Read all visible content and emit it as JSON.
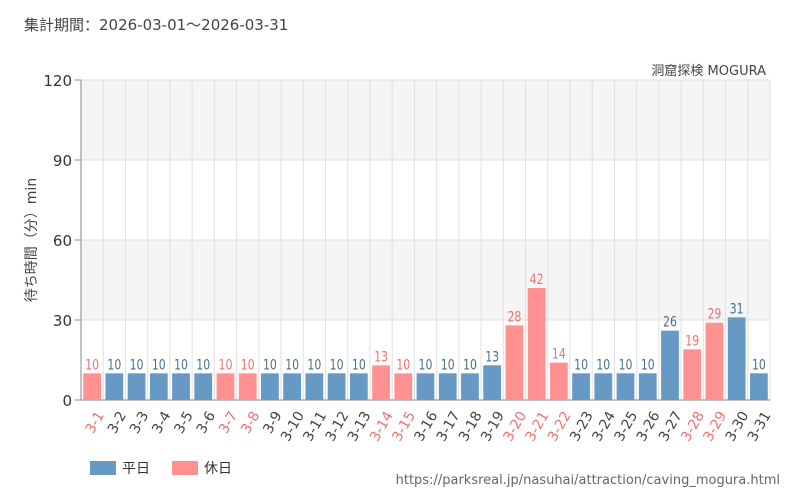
{
  "header": {
    "period_title": "集計期間：2026-03-01～2026-03-31",
    "attraction_name": "洞窟探検 MOGURA"
  },
  "footer": {
    "source_url": "https://parksreal.jp/nasuhai/attraction/caving_mogura.html"
  },
  "colors": {
    "weekday": "#6699c4",
    "holiday": "#ff9190",
    "holiday_label": "#f07070",
    "weekday_label": "#4a6e8c",
    "band": "#f5f5f5",
    "grid": "#e0e0e0"
  },
  "chart_data": {
    "type": "bar",
    "ylabel": "待ち時間（分）min",
    "ylim": [
      0,
      120
    ],
    "yticks": [
      0,
      30,
      60,
      90,
      120
    ],
    "grid": true,
    "legend_position": "bottom-left",
    "legend": [
      {
        "key": "weekday",
        "label": "平日"
      },
      {
        "key": "holiday",
        "label": "休日"
      }
    ],
    "categories": [
      "3-1",
      "3-2",
      "3-3",
      "3-4",
      "3-5",
      "3-6",
      "3-7",
      "3-8",
      "3-9",
      "3-10",
      "3-11",
      "3-12",
      "3-13",
      "3-14",
      "3-15",
      "3-16",
      "3-17",
      "3-18",
      "3-19",
      "3-20",
      "3-21",
      "3-22",
      "3-23",
      "3-24",
      "3-25",
      "3-26",
      "3-27",
      "3-28",
      "3-29",
      "3-30",
      "3-31"
    ],
    "values": [
      10,
      10,
      10,
      10,
      10,
      10,
      10,
      10,
      10,
      10,
      10,
      10,
      10,
      13,
      10,
      10,
      10,
      10,
      13,
      28,
      42,
      14,
      10,
      10,
      10,
      10,
      26,
      19,
      29,
      31,
      10
    ],
    "day_type": [
      "holiday",
      "weekday",
      "weekday",
      "weekday",
      "weekday",
      "weekday",
      "holiday",
      "holiday",
      "weekday",
      "weekday",
      "weekday",
      "weekday",
      "weekday",
      "holiday",
      "holiday",
      "weekday",
      "weekday",
      "weekday",
      "weekday",
      "holiday",
      "holiday",
      "holiday",
      "weekday",
      "weekday",
      "weekday",
      "weekday",
      "weekday",
      "holiday",
      "holiday",
      "weekday",
      "weekday"
    ]
  }
}
